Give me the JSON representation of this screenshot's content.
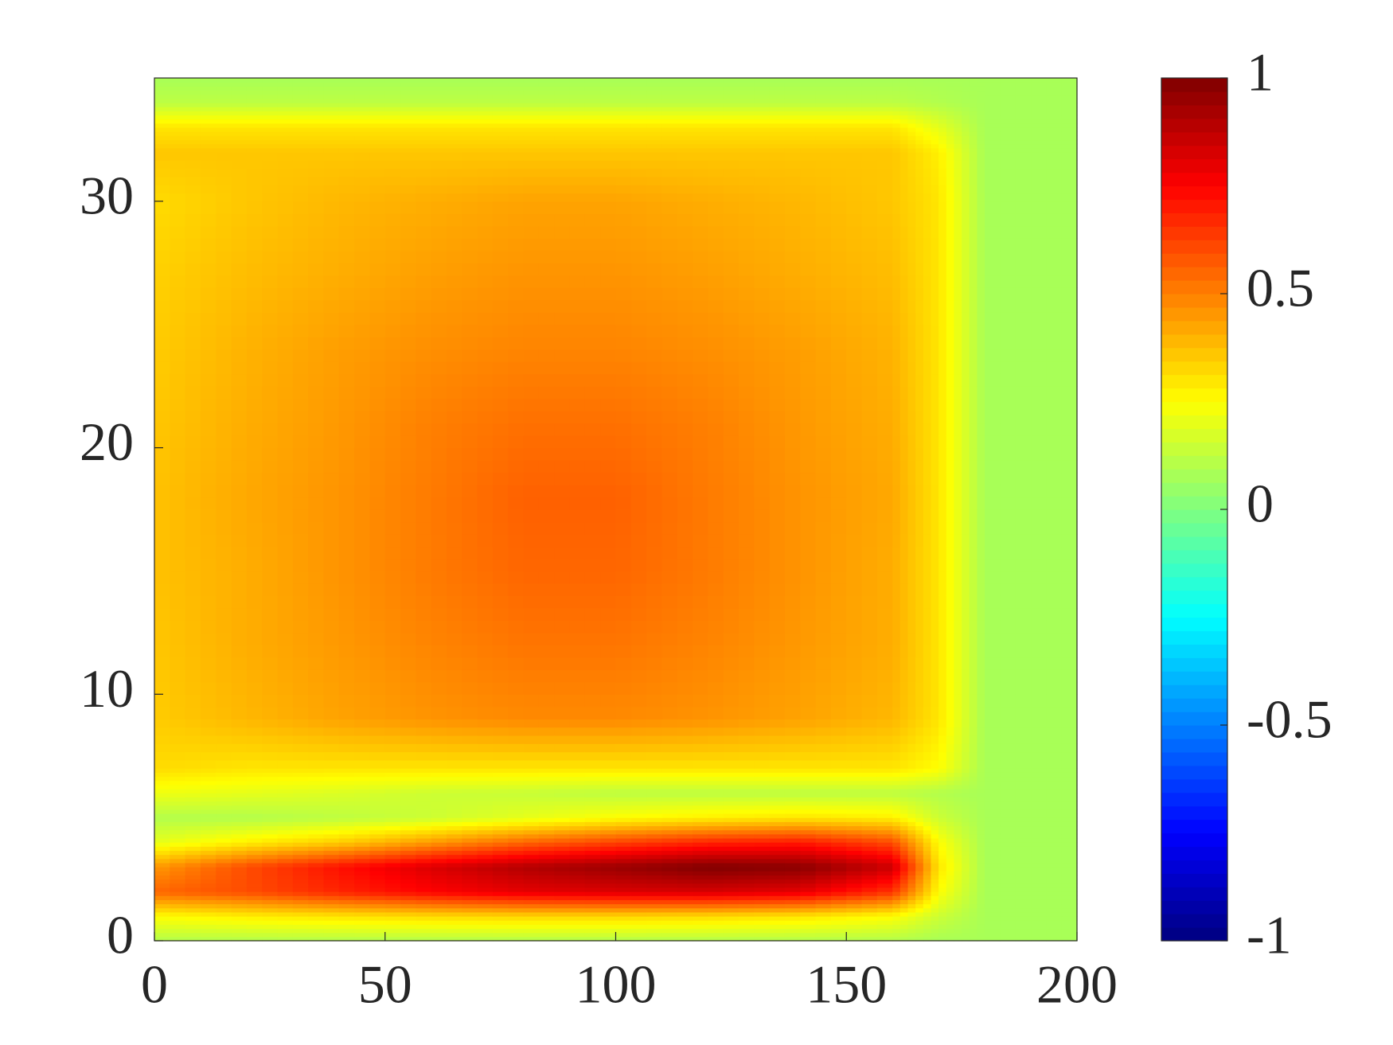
{
  "chart_data": {
    "type": "contourf",
    "colormap": "jet",
    "clim": [
      -1,
      1
    ],
    "cticks": [
      -1,
      -0.5,
      0,
      0.5,
      1
    ],
    "xlim": [
      0,
      200
    ],
    "ylim": [
      0,
      35
    ],
    "xticks": [
      0,
      50,
      100,
      150,
      200
    ],
    "yticks": [
      0,
      10,
      20,
      30
    ],
    "x": [
      0,
      20,
      40,
      60,
      80,
      100,
      120,
      140,
      160,
      170,
      180,
      200
    ],
    "y": [
      0,
      1,
      2,
      3,
      4,
      5,
      6,
      7,
      9,
      12,
      15,
      18,
      21,
      24,
      27,
      30,
      32,
      33,
      34,
      35
    ],
    "z": [
      [
        0.1,
        0.1,
        0.1,
        0.1,
        0.1,
        0.1,
        0.1,
        0.1,
        0.1,
        0.08,
        0.08,
        0.08
      ],
      [
        0.25,
        0.28,
        0.3,
        0.32,
        0.33,
        0.33,
        0.32,
        0.3,
        0.25,
        0.15,
        0.08,
        0.08
      ],
      [
        0.55,
        0.6,
        0.68,
        0.75,
        0.8,
        0.82,
        0.83,
        0.8,
        0.65,
        0.25,
        0.08,
        0.08
      ],
      [
        0.45,
        0.6,
        0.72,
        0.82,
        0.9,
        0.95,
        1.0,
        0.98,
        0.85,
        0.3,
        0.08,
        0.08
      ],
      [
        0.2,
        0.28,
        0.35,
        0.45,
        0.55,
        0.62,
        0.68,
        0.7,
        0.6,
        0.25,
        0.08,
        0.08
      ],
      [
        0.1,
        0.1,
        0.12,
        0.15,
        0.2,
        0.25,
        0.28,
        0.3,
        0.28,
        0.15,
        0.08,
        0.08
      ],
      [
        0.22,
        0.2,
        0.18,
        0.15,
        0.14,
        0.12,
        0.12,
        0.12,
        0.12,
        0.1,
        0.08,
        0.08
      ],
      [
        0.32,
        0.3,
        0.3,
        0.3,
        0.3,
        0.3,
        0.3,
        0.3,
        0.3,
        0.25,
        0.08,
        0.08
      ],
      [
        0.35,
        0.39,
        0.43,
        0.46,
        0.48,
        0.48,
        0.46,
        0.43,
        0.39,
        0.3,
        0.08,
        0.08
      ],
      [
        0.36,
        0.41,
        0.45,
        0.49,
        0.52,
        0.52,
        0.49,
        0.45,
        0.41,
        0.3,
        0.08,
        0.08
      ],
      [
        0.37,
        0.41,
        0.46,
        0.51,
        0.55,
        0.55,
        0.51,
        0.46,
        0.41,
        0.3,
        0.08,
        0.08
      ],
      [
        0.37,
        0.42,
        0.46,
        0.51,
        0.56,
        0.56,
        0.51,
        0.46,
        0.42,
        0.3,
        0.08,
        0.08
      ],
      [
        0.36,
        0.41,
        0.45,
        0.5,
        0.53,
        0.53,
        0.5,
        0.45,
        0.41,
        0.3,
        0.08,
        0.08
      ],
      [
        0.35,
        0.4,
        0.44,
        0.47,
        0.49,
        0.49,
        0.47,
        0.44,
        0.4,
        0.3,
        0.08,
        0.08
      ],
      [
        0.34,
        0.38,
        0.41,
        0.44,
        0.46,
        0.46,
        0.44,
        0.41,
        0.38,
        0.3,
        0.08,
        0.08
      ],
      [
        0.32,
        0.36,
        0.39,
        0.41,
        0.43,
        0.43,
        0.41,
        0.39,
        0.36,
        0.3,
        0.08,
        0.08
      ],
      [
        0.36,
        0.36,
        0.36,
        0.36,
        0.36,
        0.36,
        0.36,
        0.36,
        0.36,
        0.28,
        0.08,
        0.08
      ],
      [
        0.3,
        0.3,
        0.3,
        0.3,
        0.3,
        0.3,
        0.3,
        0.3,
        0.3,
        0.2,
        0.08,
        0.08
      ],
      [
        0.12,
        0.12,
        0.12,
        0.12,
        0.12,
        0.12,
        0.12,
        0.12,
        0.12,
        0.1,
        0.08,
        0.08
      ],
      [
        0.08,
        0.08,
        0.08,
        0.08,
        0.08,
        0.08,
        0.08,
        0.08,
        0.08,
        0.08,
        0.08,
        0.08
      ]
    ]
  }
}
